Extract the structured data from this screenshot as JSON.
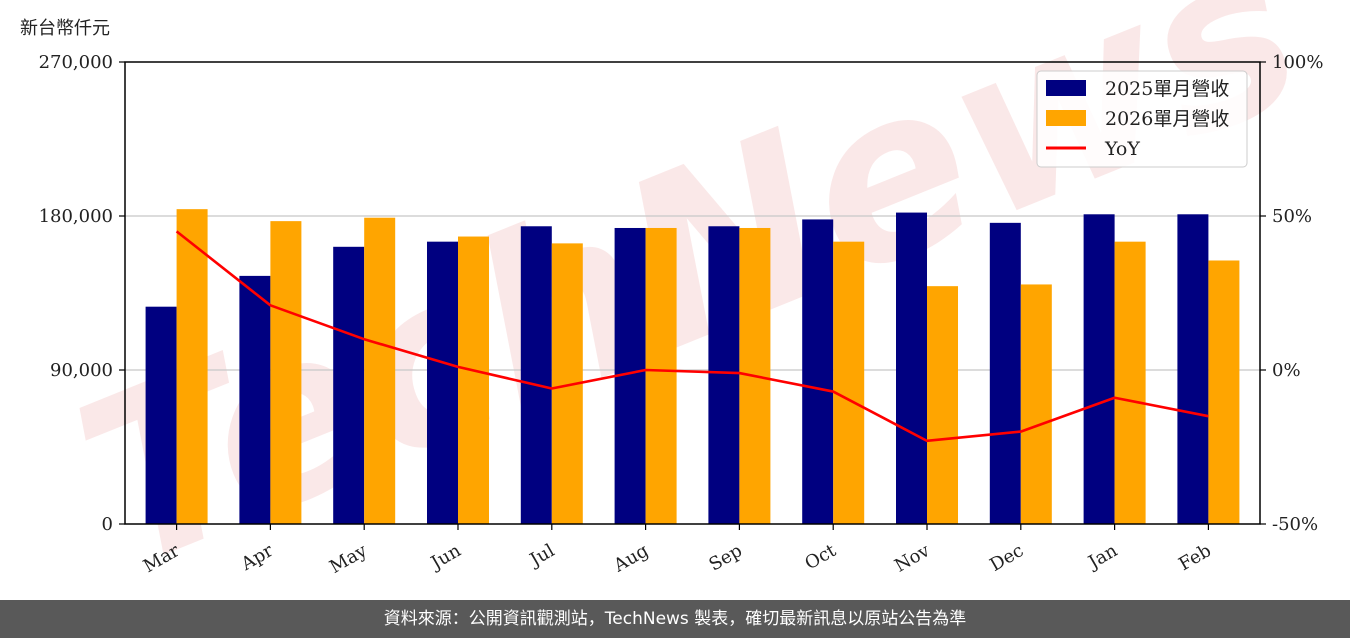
{
  "chart_data": {
    "type": "bar",
    "y_unit_label": "新台幣仟元",
    "categories": [
      "Mar",
      "Apr",
      "May",
      "Jun",
      "Jul",
      "Aug",
      "Sep",
      "Oct",
      "Nov",
      "Dec",
      "Jan",
      "Feb"
    ],
    "series": [
      {
        "name": "2025單月營收",
        "type": "bar",
        "axis": "left",
        "color": "#000080",
        "values": [
          127000,
          145000,
          162000,
          165000,
          174000,
          173000,
          174000,
          178000,
          182000,
          176000,
          181000,
          181000
        ]
      },
      {
        "name": "2026單月營收",
        "type": "bar",
        "axis": "left",
        "color": "#FFA500",
        "values": [
          184000,
          177000,
          179000,
          168000,
          164000,
          173000,
          173000,
          165000,
          139000,
          140000,
          165000,
          154000
        ]
      },
      {
        "name": "YoY",
        "type": "line",
        "axis": "right",
        "color": "#FF0000",
        "values": [
          45,
          21,
          10,
          1,
          -6,
          0,
          -1,
          -7,
          -23,
          -20,
          -9,
          -15
        ]
      }
    ],
    "ylim": [
      0,
      270000
    ],
    "yticks": [
      "0",
      "90,000",
      "180,000",
      "270,000"
    ],
    "yticks_values": [
      0,
      90000,
      180000,
      270000
    ],
    "y2lim": [
      -50,
      100
    ],
    "y2ticks": [
      "-50%",
      "0%",
      "50%",
      "100%"
    ],
    "y2ticks_values": [
      -50,
      0,
      50,
      100
    ],
    "grid": true,
    "legend_position": "top-right"
  },
  "watermark": {
    "text": "TechNews"
  },
  "footer": {
    "text": "資料來源：公開資訊觀測站，TechNews 製表，確切最新訊息以原站公告為準"
  }
}
